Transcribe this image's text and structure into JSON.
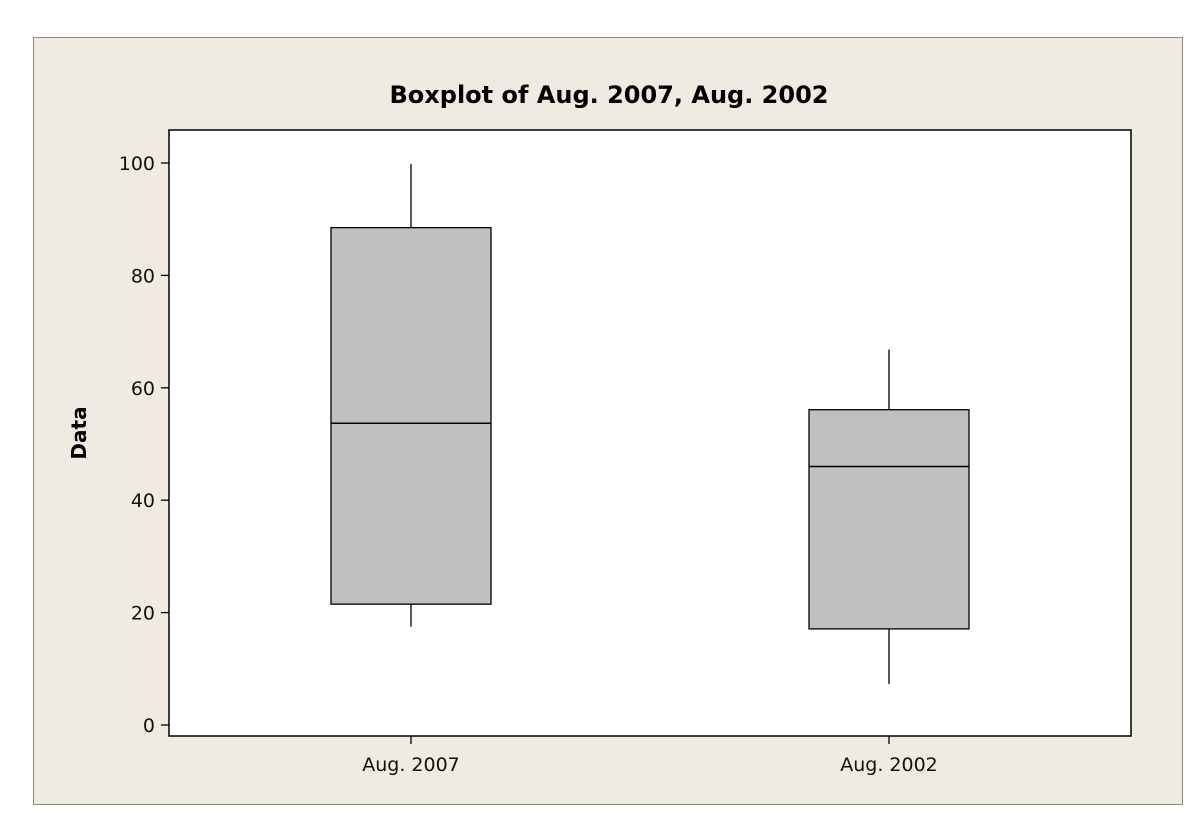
{
  "chart_data": {
    "type": "boxplot",
    "title": "Boxplot of Aug. 2007, Aug. 2002",
    "xlabel": "",
    "ylabel": "Data",
    "ylim": [
      0,
      100
    ],
    "yticks": [
      "0",
      "20",
      "40",
      "60",
      "80",
      "100"
    ],
    "ytick_values": [
      0,
      20,
      40,
      60,
      80,
      100
    ],
    "categories": [
      "Aug. 2007",
      "Aug. 2002"
    ],
    "series": [
      {
        "category": "Aug. 2007",
        "min": 17.5,
        "q1": 21.5,
        "median": 53.7,
        "q3": 88.5,
        "max": 99.8
      },
      {
        "category": "Aug. 2002",
        "min": 7.3,
        "q1": 17.1,
        "median": 46.0,
        "q3": 56.1,
        "max": 66.8
      }
    ],
    "grid": false,
    "box_fill": "#c0c0c0",
    "line_color": "#000000",
    "plot_background": "#ffffff",
    "figure_background": "#f0ebe1"
  }
}
